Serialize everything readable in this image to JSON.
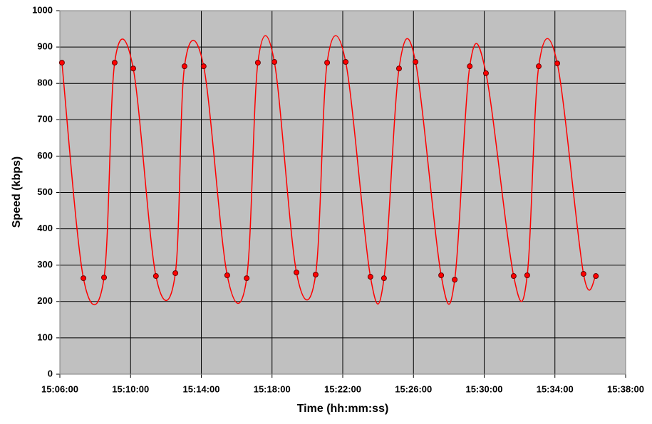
{
  "chart_data": {
    "type": "line",
    "x_label": "Time (hh:mm:ss)",
    "y_label": "Speed (kbps)",
    "x": [
      "15:06:07",
      "15:07:20",
      "15:08:30",
      "15:09:06",
      "15:10:09",
      "15:11:26",
      "15:12:32",
      "15:13:03",
      "15:14:08",
      "15:15:28",
      "15:16:34",
      "15:17:12",
      "15:18:08",
      "15:19:23",
      "15:20:28",
      "15:21:07",
      "15:22:10",
      "15:23:34",
      "15:24:20",
      "15:25:11",
      "15:26:07",
      "15:27:34",
      "15:28:20",
      "15:29:11",
      "15:30:06",
      "15:31:40",
      "15:32:26",
      "15:33:05",
      "15:34:08",
      "15:35:37",
      "15:36:19"
    ],
    "series": [
      {
        "color": "#ff0000",
        "values": [
          857,
          264,
          266,
          857,
          841,
          270,
          278,
          847,
          847,
          272,
          264,
          857,
          859,
          280,
          274,
          857,
          859,
          268,
          264,
          841,
          859,
          272,
          260,
          847,
          828,
          270,
          272,
          847,
          855,
          276,
          270
        ]
      }
    ],
    "xlim": [
      "15:06:00",
      "15:38:00"
    ],
    "xticks": [
      "15:06:00",
      "15:10:00",
      "15:14:00",
      "15:18:00",
      "15:22:00",
      "15:26:00",
      "15:30:00",
      "15:34:00",
      "15:38:00"
    ],
    "ylim": [
      0,
      1000
    ],
    "yticks": [
      0,
      100,
      200,
      300,
      400,
      500,
      600,
      700,
      800,
      900,
      1000
    ],
    "grid": true,
    "smooth": true,
    "background": "#c0c0c0"
  }
}
